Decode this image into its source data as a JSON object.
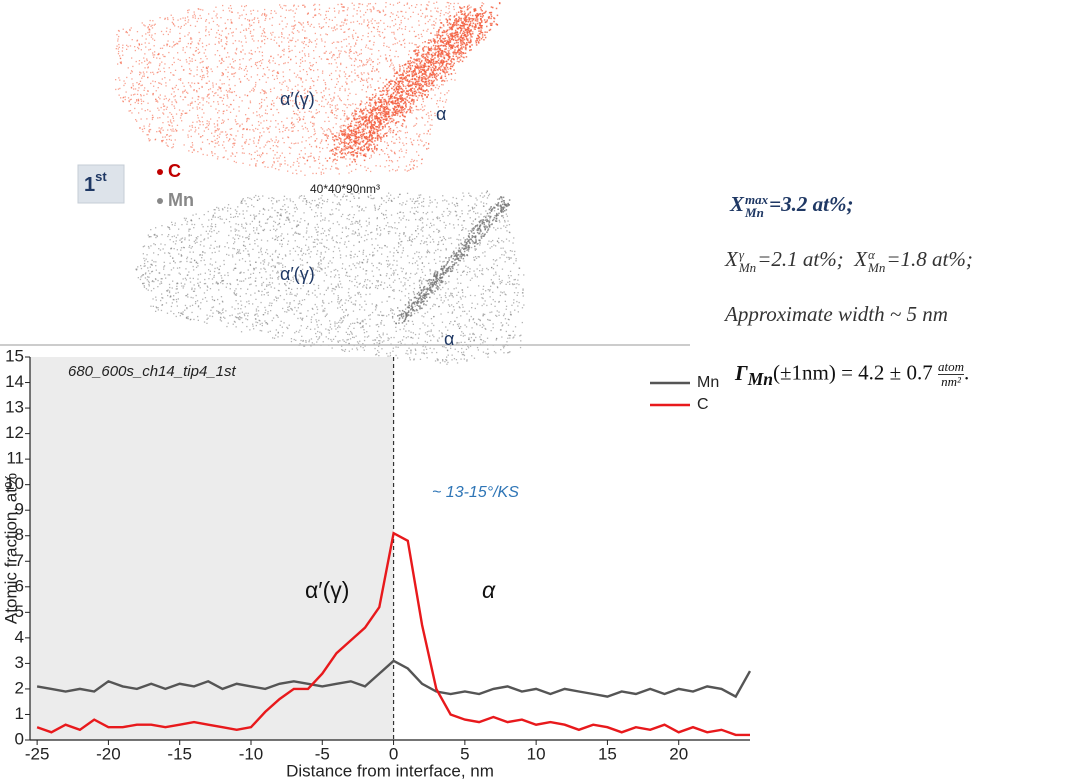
{
  "figure": {
    "badge": {
      "text": "1",
      "sup": "st"
    },
    "legend": [
      "C",
      "Mn"
    ],
    "volume": "40*40*90nm³",
    "maps": [
      {
        "left_phase": "α′(γ)",
        "right_phase": "α"
      },
      {
        "left_phase": "α′(γ)",
        "right_phase": "α"
      }
    ]
  },
  "equations": [
    {
      "symbol": "X",
      "sub": "Mn",
      "sup": "max",
      "rest": "=3.2 at%;"
    },
    [
      {
        "symbol": "X",
        "sub": "Mn",
        "sup": "γ",
        "rest": "=2.1 at%;"
      },
      {
        "symbol": "X",
        "sub": "Mn",
        "sup": "α",
        "rest": "=1.8 at%;"
      }
    ],
    "Approximate width ~ 5 nm",
    {
      "symbol": "Γ",
      "sub": "Mn",
      "rest": "(±1nm) = 4.2 ± 0.7",
      "num": "atom",
      "den": "nm²",
      "end": "."
    }
  ],
  "chart_data": {
    "type": "line",
    "x_label": "Distance from interface, nm",
    "y_label": "Atomic fraction, at%",
    "annotations": [
      "680_600s_ch14_tip4_1st",
      "~ 13-15°/KS",
      "α′(γ)",
      "α"
    ],
    "x": [
      -25,
      -24,
      -23,
      -22,
      -21,
      -20,
      -19,
      -18,
      -17,
      -16,
      -15,
      -14,
      -13,
      -12,
      -11,
      -10,
      -9,
      -8,
      -7,
      -6,
      -5,
      -4,
      -3,
      -2,
      -1,
      0,
      1,
      2,
      3,
      4,
      5,
      6,
      7,
      8,
      9,
      10,
      11,
      12,
      13,
      14,
      15,
      16,
      17,
      18,
      19,
      20,
      21,
      22,
      23,
      24,
      25
    ],
    "series": [
      {
        "name": "Mn",
        "color": "#555555",
        "values": [
          2.1,
          2.0,
          1.9,
          2.0,
          1.9,
          2.3,
          2.1,
          2.0,
          2.2,
          2.0,
          2.2,
          2.1,
          2.3,
          2.0,
          2.2,
          2.1,
          2.0,
          2.2,
          2.3,
          2.2,
          2.1,
          2.2,
          2.3,
          2.1,
          2.6,
          3.1,
          2.8,
          2.2,
          1.9,
          1.8,
          1.9,
          1.8,
          2.0,
          2.1,
          1.9,
          2.0,
          1.8,
          2.0,
          1.9,
          1.8,
          1.7,
          1.9,
          1.8,
          2.0,
          1.8,
          2.0,
          1.9,
          2.1,
          2.0,
          1.7,
          2.7
        ]
      },
      {
        "name": "C",
        "color": "#e8191c",
        "values": [
          0.5,
          0.3,
          0.6,
          0.4,
          0.8,
          0.5,
          0.5,
          0.6,
          0.6,
          0.5,
          0.6,
          0.7,
          0.6,
          0.5,
          0.4,
          0.5,
          1.1,
          1.6,
          2.0,
          2.0,
          2.6,
          3.4,
          3.9,
          4.4,
          5.2,
          8.1,
          7.8,
          4.5,
          2.0,
          1.0,
          0.8,
          0.7,
          0.9,
          0.7,
          0.8,
          0.6,
          0.7,
          0.6,
          0.4,
          0.6,
          0.5,
          0.3,
          0.5,
          0.4,
          0.6,
          0.3,
          0.5,
          0.3,
          0.4,
          0.2,
          0.2
        ]
      }
    ],
    "xlim": [
      -25.5,
      25
    ],
    "ylim": [
      0,
      15
    ],
    "xticks": [
      -25,
      -20,
      -15,
      -10,
      -5,
      0,
      5,
      10,
      15,
      20
    ],
    "yticks": [
      0,
      1,
      2,
      3,
      4,
      5,
      6,
      7,
      8,
      9,
      10,
      11,
      12,
      13,
      14,
      15
    ],
    "vlines": [
      0
    ],
    "legend": "upper right"
  }
}
